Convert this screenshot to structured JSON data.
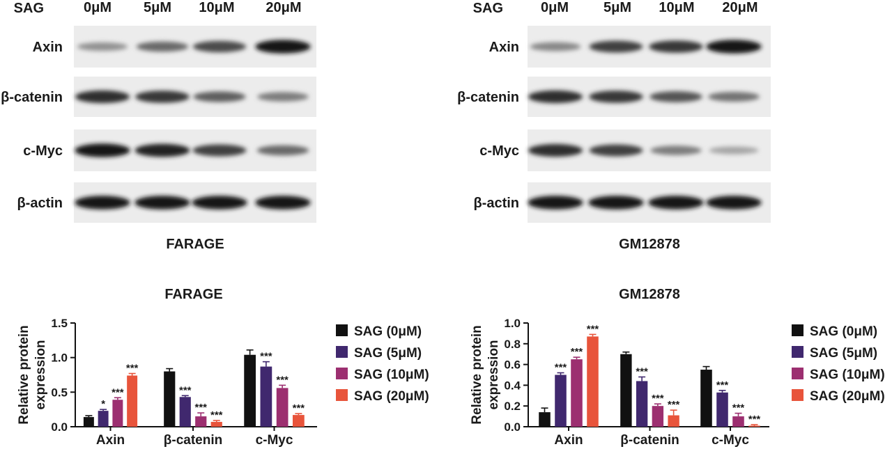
{
  "blot_panels": [
    {
      "header_label": "SAG",
      "doses": [
        "0μM",
        "5μM",
        "10μM",
        "20μM"
      ],
      "rows": [
        {
          "label": "Axin",
          "band_intensity": [
            0.35,
            0.55,
            0.7,
            0.95
          ]
        },
        {
          "label": "β-catenin",
          "band_intensity": [
            0.85,
            0.8,
            0.6,
            0.45
          ]
        },
        {
          "label": "c-Myc",
          "band_intensity": [
            0.95,
            0.9,
            0.75,
            0.55
          ]
        },
        {
          "label": "β-actin",
          "band_intensity": [
            0.95,
            0.95,
            0.95,
            0.95
          ]
        }
      ],
      "caption": "FARAGE"
    },
    {
      "header_label": "SAG",
      "doses": [
        "0μM",
        "5μM",
        "10μM",
        "20μM"
      ],
      "rows": [
        {
          "label": "Axin",
          "band_intensity": [
            0.4,
            0.75,
            0.8,
            0.95
          ]
        },
        {
          "label": "β-catenin",
          "band_intensity": [
            0.85,
            0.8,
            0.65,
            0.5
          ]
        },
        {
          "label": "c-Myc",
          "band_intensity": [
            0.85,
            0.75,
            0.45,
            0.25
          ]
        },
        {
          "label": "β-actin",
          "band_intensity": [
            0.95,
            0.95,
            0.95,
            0.95
          ]
        }
      ],
      "caption": "GM12878"
    }
  ],
  "chart_data": [
    {
      "type": "bar",
      "title": "FARAGE",
      "ylabel": "Relative protein expression",
      "ylim": [
        0,
        1.5
      ],
      "yticks": [
        "0.0",
        "0.5",
        "1.0",
        "1.5"
      ],
      "yticks_values": [
        0,
        0.5,
        1.0,
        1.5
      ],
      "categories": [
        "Axin",
        "β-catenin",
        "c-Myc"
      ],
      "series": [
        {
          "name": "SAG (0μM)",
          "color": "#111111",
          "values": [
            0.14,
            0.8,
            1.04
          ],
          "errors": [
            0.02,
            0.04,
            0.07
          ],
          "sig": [
            "",
            "",
            ""
          ]
        },
        {
          "name": "SAG (5μM)",
          "color": "#40286e",
          "values": [
            0.23,
            0.43,
            0.87
          ],
          "errors": [
            0.02,
            0.02,
            0.07
          ],
          "sig": [
            "*",
            "***",
            "***"
          ]
        },
        {
          "name": "SAG (10μM)",
          "color": "#9c2f70",
          "values": [
            0.39,
            0.15,
            0.56
          ],
          "errors": [
            0.03,
            0.05,
            0.04
          ],
          "sig": [
            "***",
            "***",
            "***"
          ]
        },
        {
          "name": "SAG (20μM)",
          "color": "#e8543b",
          "values": [
            0.74,
            0.07,
            0.17
          ],
          "errors": [
            0.03,
            0.02,
            0.02
          ],
          "sig": [
            "***",
            "***",
            "***"
          ]
        }
      ],
      "legend": "right"
    },
    {
      "type": "bar",
      "title": "GM12878",
      "ylabel": "Relative protein expression",
      "ylim": [
        0,
        1.0
      ],
      "yticks": [
        "0.0",
        "0.2",
        "0.4",
        "0.6",
        "0.8",
        "1.0"
      ],
      "yticks_values": [
        0,
        0.2,
        0.4,
        0.6,
        0.8,
        1.0
      ],
      "categories": [
        "Axin",
        "β-catenin",
        "c-Myc"
      ],
      "series": [
        {
          "name": "SAG (0μM)",
          "color": "#111111",
          "values": [
            0.14,
            0.7,
            0.55
          ],
          "errors": [
            0.04,
            0.02,
            0.03
          ],
          "sig": [
            "",
            "",
            ""
          ]
        },
        {
          "name": "SAG (5μM)",
          "color": "#40286e",
          "values": [
            0.5,
            0.44,
            0.33
          ],
          "errors": [
            0.02,
            0.04,
            0.02
          ],
          "sig": [
            "***",
            "***",
            "***"
          ]
        },
        {
          "name": "SAG (10μM)",
          "color": "#9c2f70",
          "values": [
            0.65,
            0.2,
            0.1
          ],
          "errors": [
            0.02,
            0.02,
            0.03
          ],
          "sig": [
            "***",
            "***",
            "***"
          ]
        },
        {
          "name": "SAG (20μM)",
          "color": "#e8543b",
          "values": [
            0.87,
            0.11,
            0.01
          ],
          "errors": [
            0.02,
            0.05,
            0.01
          ],
          "sig": [
            "***",
            "***",
            "***"
          ]
        }
      ],
      "legend": "right"
    }
  ]
}
